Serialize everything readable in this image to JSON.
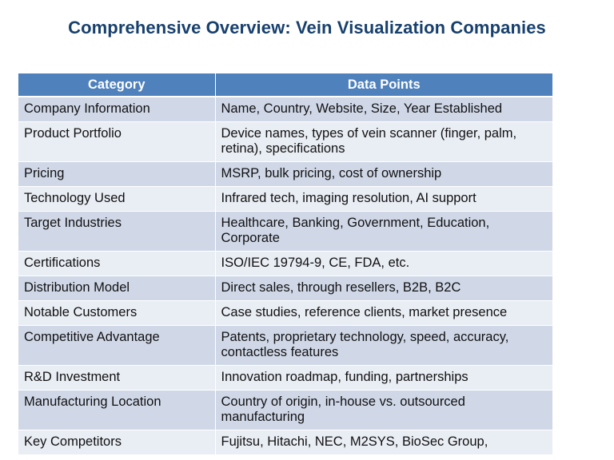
{
  "title": "Comprehensive Overview: Vein Visualization Companies",
  "table": {
    "headers": [
      "Category",
      "Data Points"
    ],
    "rows": [
      [
        "Company Information",
        "Name, Country, Website, Size, Year Established"
      ],
      [
        "Product Portfolio",
        "Device names, types of vein scanner (finger, palm, retina), specifications"
      ],
      [
        "Pricing",
        "MSRP, bulk pricing, cost of ownership"
      ],
      [
        "Technology Used",
        "Infrared tech, imaging resolution, AI support"
      ],
      [
        "Target Industries",
        "Healthcare, Banking, Government, Education, Corporate"
      ],
      [
        "Certifications",
        "ISO/IEC 19794-9, CE, FDA, etc."
      ],
      [
        "Distribution Model",
        "Direct sales, through resellers, B2B, B2C"
      ],
      [
        "Notable Customers",
        "Case studies, reference clients, market presence"
      ],
      [
        "Competitive Advantage",
        "Patents, proprietary technology, speed, accuracy, contactless features"
      ],
      [
        "R&D Investment",
        "Innovation roadmap, funding, partnerships"
      ],
      [
        "Manufacturing Location",
        "Country of origin, in-house vs. outsourced manufacturing"
      ],
      [
        "Key Competitors",
        "Fujitsu, Hitachi, NEC, M2SYS, BioSec Group,"
      ]
    ]
  },
  "colors": {
    "title": "#17406d",
    "header_bg": "#4f81bd",
    "row_odd": "#d0d8e8",
    "row_even": "#e9edf4"
  }
}
